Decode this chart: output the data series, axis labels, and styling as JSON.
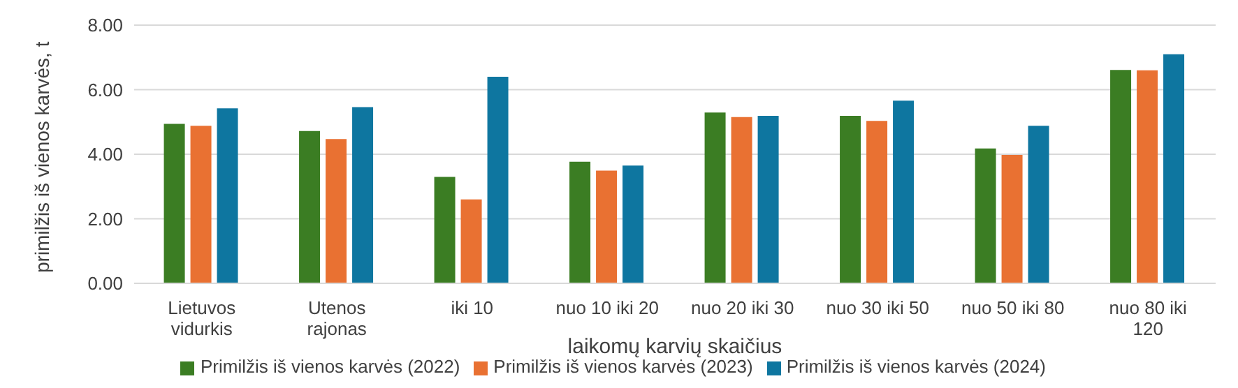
{
  "chart_data": {
    "type": "bar",
    "xlabel": "laikomų karvių skaičius",
    "ylabel": "primilžis iš vienos karvės, t",
    "categories": [
      "Lietuvos vidurkis",
      "Utenos rajonas",
      "iki 10",
      "nuo 10 iki 20",
      "nuo 20 iki 30",
      "nuo 30 iki 50",
      "nuo 50 iki 80",
      "nuo 80 iki 120"
    ],
    "series": [
      {
        "name": "Primilžis iš vienos karvės (2022)",
        "color": "#3b7d23",
        "values": [
          4.94,
          4.72,
          3.3,
          3.77,
          5.29,
          5.19,
          4.18,
          6.61
        ]
      },
      {
        "name": "Primilžis iš vienos karvės (2023)",
        "color": "#e97132",
        "values": [
          4.88,
          4.47,
          2.6,
          3.49,
          5.15,
          5.03,
          3.98,
          6.6
        ]
      },
      {
        "name": "Primilžis iš vienos karvės (2024)",
        "color": "#0e76a0",
        "values": [
          5.42,
          5.46,
          6.4,
          3.65,
          5.19,
          5.66,
          4.88,
          7.1
        ]
      }
    ],
    "ylim": [
      0,
      8
    ],
    "yticks": [
      {
        "value": 0,
        "label": "0.00"
      },
      {
        "value": 2,
        "label": "2.00"
      },
      {
        "value": 4,
        "label": "4.00"
      },
      {
        "value": 6,
        "label": "6.00"
      },
      {
        "value": 8,
        "label": "8.00"
      }
    ],
    "grid": "y",
    "legend": "bottom"
  }
}
